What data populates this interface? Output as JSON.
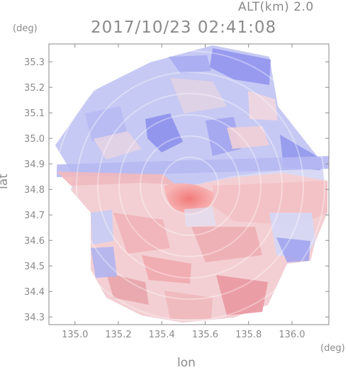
{
  "header": {
    "altitude": "ALT(km) 2.0",
    "datetime": "2017/10/23 02:41:08"
  },
  "axes": {
    "x_unit": "(deg)",
    "y_unit": "(deg)",
    "x_title": "lon",
    "y_title": "lat",
    "x_range": [
      134.88,
      136.17
    ],
    "y_range": [
      34.27,
      35.37
    ],
    "x_ticks": [
      "135.0",
      "135.2",
      "135.4",
      "135.6",
      "135.8",
      "136.0"
    ],
    "y_ticks": [
      "34.3",
      "34.4",
      "34.5",
      "34.6",
      "34.7",
      "34.8",
      "34.9",
      "35.0",
      "35.1",
      "35.2",
      "35.3"
    ]
  },
  "colors": {
    "approaching": "#7a7ef0",
    "receding": "#f07a7a",
    "frame": "#8a8a8a"
  }
}
